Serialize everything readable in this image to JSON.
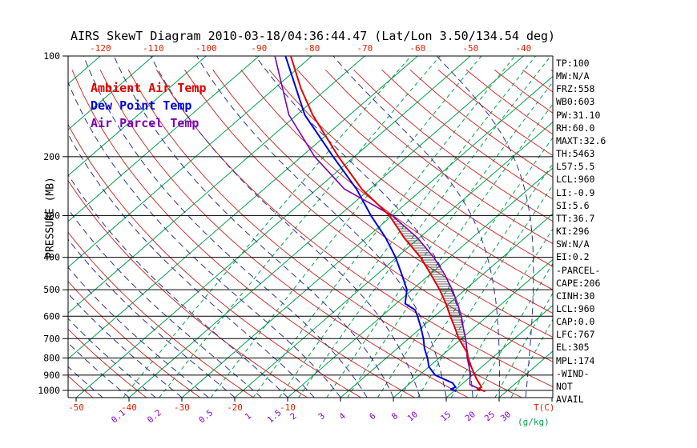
{
  "title": "AIRS SkewT Diagram 2010-03-18/04:36:44.47 (Lat/Lon 3.50/134.54 deg)",
  "legend": {
    "items": [
      {
        "label": "Ambient Air Temp",
        "color": "#e00000"
      },
      {
        "label": "Dew Point Temp",
        "color": "#0000e0"
      },
      {
        "label": "Air Parcel Temp",
        "color": "#7d00b4"
      }
    ]
  },
  "axes": {
    "pressure_label": "PRESSURE (MB)",
    "pressure_ticks": [
      100,
      200,
      300,
      400,
      500,
      600,
      700,
      800,
      900,
      1000
    ],
    "top_temp_ticks": [
      -120,
      -110,
      -100,
      -90,
      -80,
      -70,
      -60,
      -50,
      -40
    ],
    "bottom_temp_ticks": [
      -50,
      -40,
      -30,
      -20,
      -10
    ],
    "temp_unit_label": "T(C)",
    "mixing_unit_label": "(g/kg)"
  },
  "stats_panel": {
    "lines": [
      "TP:100",
      "MW:N/A",
      "FRZ:558",
      "WB0:603",
      "PW:31.10",
      "RH:60.0",
      "MAXT:32.6",
      "TH:5463",
      "L57:5.5",
      "LCL:960",
      "LI:-0.9",
      "SI:5.6",
      "TT:36.7",
      "KI:296",
      "SW:N/A",
      "EI:0.2",
      "-PARCEL-",
      "CAPE:206",
      "CINH:30",
      "LCL:960",
      "CAP:0.0",
      "LFC:767",
      "EL:305",
      "MPL:174",
      "-WIND-",
      "NOT",
      "AVAIL"
    ]
  },
  "chart_data": {
    "type": "line",
    "title": "AIRS SkewT Diagram 2010-03-18/04:36:44.47 (Lat/Lon 3.50/134.54 deg)",
    "x_axis_label": "T(C)",
    "y_axis_label": "PRESSURE (MB)",
    "y_scale": "log",
    "ylim": [
      1050,
      100
    ],
    "x_surface_range_c": [
      -50,
      40
    ],
    "point_format": "[pressure_mb, temperature_c]",
    "series": [
      {
        "name": "Ambient Air Temp",
        "color": "#e00000",
        "points": [
          [
            1008,
            26.0
          ],
          [
            1000,
            25.3
          ],
          [
            990,
            24.0
          ],
          [
            978,
            24.4
          ],
          [
            950,
            23.0
          ],
          [
            925,
            21.7
          ],
          [
            900,
            20.5
          ],
          [
            850,
            18.0
          ],
          [
            800,
            15.5
          ],
          [
            767,
            13.9
          ],
          [
            750,
            12.8
          ],
          [
            700,
            9.5
          ],
          [
            650,
            6.4
          ],
          [
            600,
            3.0
          ],
          [
            550,
            -0.6
          ],
          [
            500,
            -4.8
          ],
          [
            450,
            -9.8
          ],
          [
            400,
            -15.5
          ],
          [
            350,
            -22.8
          ],
          [
            300,
            -30.5
          ],
          [
            250,
            -41.5
          ],
          [
            200,
            -53.0
          ],
          [
            175,
            -59.5
          ],
          [
            150,
            -67.0
          ],
          [
            125,
            -75.0
          ],
          [
            100,
            -84.0
          ]
        ]
      },
      {
        "name": "Dew Point Temp",
        "color": "#0000e0",
        "points": [
          [
            1008,
            20.5
          ],
          [
            1000,
            20.0
          ],
          [
            990,
            19.0
          ],
          [
            978,
            19.5
          ],
          [
            950,
            18.0
          ],
          [
            925,
            15.5
          ],
          [
            900,
            13.0
          ],
          [
            850,
            10.0
          ],
          [
            800,
            7.8
          ],
          [
            750,
            5.2
          ],
          [
            700,
            2.8
          ],
          [
            650,
            0.0
          ],
          [
            600,
            -3.2
          ],
          [
            575,
            -5.0
          ],
          [
            550,
            -8.3
          ],
          [
            500,
            -11.0
          ],
          [
            450,
            -15.3
          ],
          [
            400,
            -20.2
          ],
          [
            350,
            -26.3
          ],
          [
            300,
            -34.0
          ],
          [
            250,
            -42.5
          ],
          [
            200,
            -54.0
          ],
          [
            150,
            -68.5
          ],
          [
            100,
            -85.0
          ]
        ]
      },
      {
        "name": "Air Parcel Temp",
        "color": "#7d00b4",
        "points": [
          [
            1008,
            26.0
          ],
          [
            960,
            21.6
          ],
          [
            900,
            19.6
          ],
          [
            850,
            17.6
          ],
          [
            800,
            15.3
          ],
          [
            767,
            13.9
          ],
          [
            750,
            13.2
          ],
          [
            700,
            10.8
          ],
          [
            650,
            8.0
          ],
          [
            600,
            5.1
          ],
          [
            550,
            1.6
          ],
          [
            500,
            -2.4
          ],
          [
            450,
            -7.2
          ],
          [
            400,
            -13.0
          ],
          [
            350,
            -20.3
          ],
          [
            300,
            -30.0
          ],
          [
            250,
            -44.8
          ],
          [
            200,
            -57.5
          ],
          [
            150,
            -71.5
          ],
          [
            100,
            -87.0
          ]
        ]
      }
    ],
    "reference_lines": {
      "isotherms_c": {
        "min": -160,
        "max": 40,
        "step": 10,
        "color": "#00a14b",
        "style": "solid"
      },
      "dry_adiabats_theta_c": {
        "min": -50,
        "max": 190,
        "step": 10,
        "color": "#cc3333",
        "style": "solid"
      },
      "moist_adiabats_c": {
        "min": -45,
        "max": 35,
        "step": 5,
        "color": "#2e2e9e",
        "style": "dashed"
      },
      "mixing_ratio_gkg": {
        "values": [
          0.1,
          0.2,
          0.5,
          1,
          1.5,
          2,
          3,
          4,
          6,
          8,
          10,
          15,
          20,
          25,
          30
        ],
        "color": "#00a14b",
        "style": "dashed",
        "label_color": "#8800cc"
      }
    },
    "cape_hatch": {
      "between": [
        "Ambient Air Temp",
        "Air Parcel Temp"
      ],
      "from_mb": 767,
      "to_mb": 305
    }
  }
}
